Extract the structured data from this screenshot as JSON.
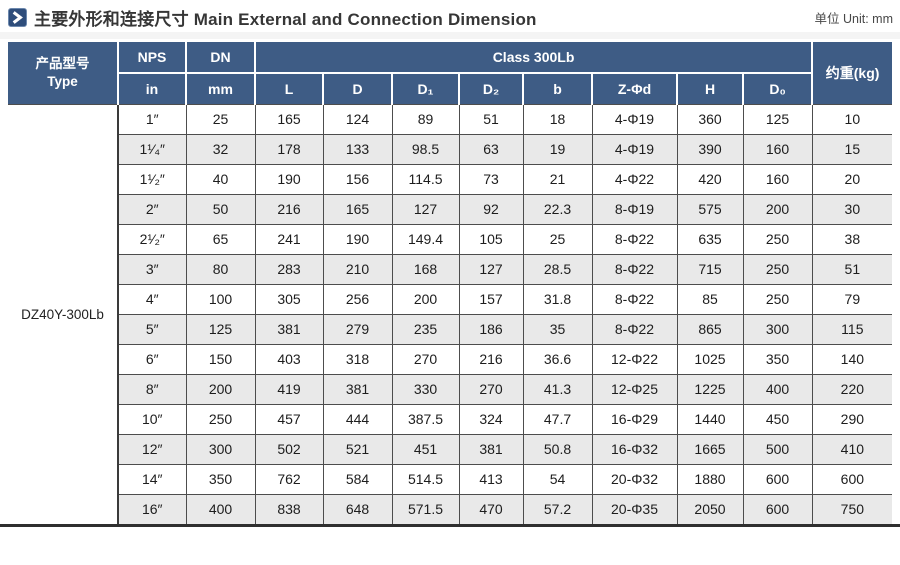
{
  "header": {
    "title": "主要外形和连接尺寸 Main External and Connection Dimension",
    "unit": "单位 Unit: mm",
    "icon": "chevron-right-icon"
  },
  "colors": {
    "header_blue": "#3e5c85",
    "icon_navy": "#2e4d7b",
    "stripe_gray": "#e9e9e9",
    "grid_line": "#4d4d4d"
  },
  "table": {
    "type_header_zh": "产品型号",
    "type_header_en": "Type",
    "product_type": "DZ40Y-300Lb",
    "nps_label": "NPS",
    "nps_unit": "in",
    "dn_label": "DN",
    "dn_unit": "mm",
    "class_label": "Class 300Lb",
    "weight_label": "约重(kg)",
    "dim_headers": [
      "L",
      "D",
      "D₁",
      "D₂",
      "b",
      "Z-Φd",
      "H",
      "D₀"
    ],
    "rows": [
      {
        "nps": "1″",
        "dn": "25",
        "vals": [
          "165",
          "124",
          "89",
          "51",
          "18",
          "4-Φ19",
          "360",
          "125"
        ],
        "weight": "10"
      },
      {
        "nps": "1¹⁄₄″",
        "dn": "32",
        "vals": [
          "178",
          "133",
          "98.5",
          "63",
          "19",
          "4-Φ19",
          "390",
          "160"
        ],
        "weight": "15"
      },
      {
        "nps": "1¹⁄₂″",
        "dn": "40",
        "vals": [
          "190",
          "156",
          "114.5",
          "73",
          "21",
          "4-Φ22",
          "420",
          "160"
        ],
        "weight": "20"
      },
      {
        "nps": "2″",
        "dn": "50",
        "vals": [
          "216",
          "165",
          "127",
          "92",
          "22.3",
          "8-Φ19",
          "575",
          "200"
        ],
        "weight": "30"
      },
      {
        "nps": "2¹⁄₂″",
        "dn": "65",
        "vals": [
          "241",
          "190",
          "149.4",
          "105",
          "25",
          "8-Φ22",
          "635",
          "250"
        ],
        "weight": "38"
      },
      {
        "nps": "3″",
        "dn": "80",
        "vals": [
          "283",
          "210",
          "168",
          "127",
          "28.5",
          "8-Φ22",
          "715",
          "250"
        ],
        "weight": "51"
      },
      {
        "nps": "4″",
        "dn": "100",
        "vals": [
          "305",
          "256",
          "200",
          "157",
          "31.8",
          "8-Φ22",
          "85",
          "250"
        ],
        "weight": "79"
      },
      {
        "nps": "5″",
        "dn": "125",
        "vals": [
          "381",
          "279",
          "235",
          "186",
          "35",
          "8-Φ22",
          "865",
          "300"
        ],
        "weight": "115"
      },
      {
        "nps": "6″",
        "dn": "150",
        "vals": [
          "403",
          "318",
          "270",
          "216",
          "36.6",
          "12-Φ22",
          "1025",
          "350"
        ],
        "weight": "140"
      },
      {
        "nps": "8″",
        "dn": "200",
        "vals": [
          "419",
          "381",
          "330",
          "270",
          "41.3",
          "12-Φ25",
          "1225",
          "400"
        ],
        "weight": "220"
      },
      {
        "nps": "10″",
        "dn": "250",
        "vals": [
          "457",
          "444",
          "387.5",
          "324",
          "47.7",
          "16-Φ29",
          "1440",
          "450"
        ],
        "weight": "290"
      },
      {
        "nps": "12″",
        "dn": "300",
        "vals": [
          "502",
          "521",
          "451",
          "381",
          "50.8",
          "16-Φ32",
          "1665",
          "500"
        ],
        "weight": "410"
      },
      {
        "nps": "14″",
        "dn": "350",
        "vals": [
          "762",
          "584",
          "514.5",
          "413",
          "54",
          "20-Φ32",
          "1880",
          "600"
        ],
        "weight": "600"
      },
      {
        "nps": "16″",
        "dn": "400",
        "vals": [
          "838",
          "648",
          "571.5",
          "470",
          "57.2",
          "20-Φ35",
          "2050",
          "600"
        ],
        "weight": "750"
      }
    ]
  }
}
